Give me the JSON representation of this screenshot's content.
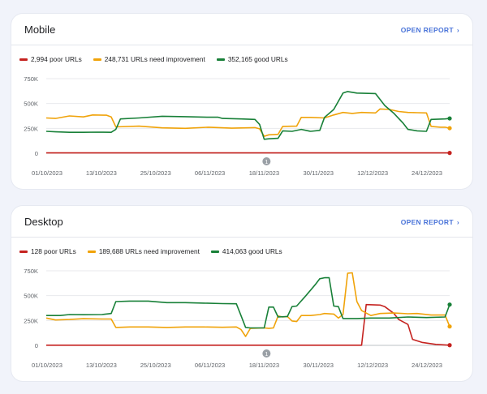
{
  "mobile": {
    "title": "Mobile",
    "open_report": "OPEN REPORT",
    "chart_data": {
      "type": "line",
      "x": [
        "01/10/2023",
        "13/10/2023",
        "25/10/2023",
        "06/11/2023",
        "18/11/2023",
        "30/11/2023",
        "12/12/2023",
        "24/12/2023"
      ],
      "y_ticks": [
        "750K",
        "500K",
        "250K",
        "0"
      ],
      "ylim": [
        0,
        750000
      ],
      "annotation": "1",
      "series": [
        {
          "name": "2,994 poor URLs",
          "color": "#c5221f",
          "values": [
            [
              0,
              3000
            ],
            [
              15,
              3000
            ],
            [
              30,
              3000
            ],
            [
              45,
              3000
            ],
            [
              60,
              3000
            ],
            [
              70,
              3000
            ],
            [
              80,
              3000
            ],
            [
              87,
              3000
            ]
          ]
        },
        {
          "name": "248,731 URLs need improvement",
          "color": "#f0a30a",
          "values": [
            [
              0,
              355000
            ],
            [
              2,
              350000
            ],
            [
              5,
              375000
            ],
            [
              8,
              365000
            ],
            [
              10,
              385000
            ],
            [
              13,
              382000
            ],
            [
              14,
              365000
            ],
            [
              15,
              265000
            ],
            [
              20,
              272000
            ],
            [
              25,
              255000
            ],
            [
              30,
              250000
            ],
            [
              35,
              262000
            ],
            [
              40,
              252000
            ],
            [
              45,
              258000
            ],
            [
              46,
              245000
            ],
            [
              47,
              170000
            ],
            [
              48,
              185000
            ],
            [
              50,
              190000
            ],
            [
              51,
              270000
            ],
            [
              54,
              272000
            ],
            [
              55,
              360000
            ],
            [
              57,
              360000
            ],
            [
              60,
              355000
            ],
            [
              62,
              385000
            ],
            [
              64,
              410000
            ],
            [
              66,
              400000
            ],
            [
              68,
              410000
            ],
            [
              71,
              405000
            ],
            [
              72,
              445000
            ],
            [
              74,
              440000
            ],
            [
              76,
              420000
            ],
            [
              78,
              410000
            ],
            [
              80,
              408000
            ],
            [
              82,
              405000
            ],
            [
              83,
              270000
            ],
            [
              85,
              262000
            ],
            [
              86,
              262000
            ],
            [
              87,
              252000
            ]
          ]
        },
        {
          "name": "352,165 good URLs",
          "color": "#188038",
          "values": [
            [
              0,
              220000
            ],
            [
              2,
              215000
            ],
            [
              5,
              210000
            ],
            [
              8,
              210000
            ],
            [
              11,
              212000
            ],
            [
              14,
              210000
            ],
            [
              15,
              240000
            ],
            [
              16,
              345000
            ],
            [
              20,
              355000
            ],
            [
              25,
              372000
            ],
            [
              30,
              368000
            ],
            [
              35,
              362000
            ],
            [
              37,
              363000
            ],
            [
              38,
              350000
            ],
            [
              42,
              345000
            ],
            [
              45,
              340000
            ],
            [
              46,
              290000
            ],
            [
              47,
              140000
            ],
            [
              48,
              145000
            ],
            [
              50,
              150000
            ],
            [
              51,
              225000
            ],
            [
              53,
              220000
            ],
            [
              55,
              240000
            ],
            [
              57,
              220000
            ],
            [
              59,
              230000
            ],
            [
              60,
              360000
            ],
            [
              62,
              440000
            ],
            [
              64,
              605000
            ],
            [
              65,
              620000
            ],
            [
              67,
              605000
            ],
            [
              71,
              600000
            ],
            [
              73,
              480000
            ],
            [
              75,
              400000
            ],
            [
              77,
              300000
            ],
            [
              78,
              240000
            ],
            [
              80,
              225000
            ],
            [
              82,
              220000
            ],
            [
              83,
              340000
            ],
            [
              86,
              345000
            ],
            [
              87,
              350000
            ]
          ]
        }
      ]
    }
  },
  "desktop": {
    "title": "Desktop",
    "open_report": "OPEN REPORT",
    "chart_data": {
      "type": "line",
      "x": [
        "01/10/2023",
        "13/10/2023",
        "25/10/2023",
        "06/11/2023",
        "18/11/2023",
        "30/11/2023",
        "12/12/2023",
        "24/12/2023"
      ],
      "y_ticks": [
        "750K",
        "500K",
        "250K",
        "0"
      ],
      "ylim": [
        0,
        750000
      ],
      "annotation": "1",
      "series": [
        {
          "name": "128 poor URLs",
          "color": "#c5221f",
          "values": [
            [
              0,
              2000
            ],
            [
              20,
              2000
            ],
            [
              40,
              2000
            ],
            [
              60,
              2000
            ],
            [
              68,
              2000
            ],
            [
              69,
              410000
            ],
            [
              72,
              405000
            ],
            [
              73,
              390000
            ],
            [
              75,
              320000
            ],
            [
              76,
              260000
            ],
            [
              78,
              210000
            ],
            [
              79,
              60000
            ],
            [
              81,
              30000
            ],
            [
              84,
              10000
            ],
            [
              87,
              2000
            ]
          ]
        },
        {
          "name": "189,688 URLs need improvement",
          "color": "#f0a30a",
          "values": [
            [
              0,
              275000
            ],
            [
              2,
              255000
            ],
            [
              5,
              260000
            ],
            [
              8,
              268000
            ],
            [
              12,
              265000
            ],
            [
              14,
              265000
            ],
            [
              15,
              180000
            ],
            [
              18,
              185000
            ],
            [
              22,
              185000
            ],
            [
              26,
              180000
            ],
            [
              30,
              185000
            ],
            [
              34,
              185000
            ],
            [
              38,
              182000
            ],
            [
              41,
              185000
            ],
            [
              42,
              160000
            ],
            [
              43,
              90000
            ],
            [
              44,
              170000
            ],
            [
              47,
              175000
            ],
            [
              48,
              170000
            ],
            [
              49,
              175000
            ],
            [
              50,
              295000
            ],
            [
              51,
              285000
            ],
            [
              52,
              290000
            ],
            [
              53,
              245000
            ],
            [
              54,
              240000
            ],
            [
              55,
              300000
            ],
            [
              57,
              300000
            ],
            [
              59,
              310000
            ],
            [
              60,
              320000
            ],
            [
              62,
              315000
            ],
            [
              63,
              275000
            ],
            [
              64,
              310000
            ],
            [
              65,
              725000
            ],
            [
              66,
              730000
            ],
            [
              67,
              440000
            ],
            [
              68,
              350000
            ],
            [
              70,
              300000
            ],
            [
              72,
              320000
            ],
            [
              75,
              325000
            ],
            [
              78,
              318000
            ],
            [
              80,
              320000
            ],
            [
              83,
              305000
            ],
            [
              86,
              305000
            ],
            [
              87,
              190000
            ]
          ]
        },
        {
          "name": "414,063 good URLs",
          "color": "#188038",
          "values": [
            [
              0,
              300000
            ],
            [
              3,
              300000
            ],
            [
              5,
              310000
            ],
            [
              8,
              308000
            ],
            [
              12,
              310000
            ],
            [
              14,
              320000
            ],
            [
              15,
              440000
            ],
            [
              18,
              445000
            ],
            [
              22,
              445000
            ],
            [
              26,
              430000
            ],
            [
              30,
              430000
            ],
            [
              34,
              425000
            ],
            [
              38,
              420000
            ],
            [
              41,
              418000
            ],
            [
              42,
              300000
            ],
            [
              43,
              180000
            ],
            [
              44,
              175000
            ],
            [
              47,
              175000
            ],
            [
              48,
              385000
            ],
            [
              49,
              385000
            ],
            [
              50,
              285000
            ],
            [
              52,
              290000
            ],
            [
              53,
              390000
            ],
            [
              54,
              395000
            ],
            [
              56,
              500000
            ],
            [
              58,
              610000
            ],
            [
              59,
              670000
            ],
            [
              60,
              680000
            ],
            [
              61,
              680000
            ],
            [
              62,
              395000
            ],
            [
              63,
              390000
            ],
            [
              64,
              270000
            ],
            [
              67,
              270000
            ],
            [
              70,
              275000
            ],
            [
              74,
              275000
            ],
            [
              78,
              285000
            ],
            [
              82,
              280000
            ],
            [
              86,
              285000
            ],
            [
              87,
              410000
            ]
          ]
        }
      ]
    }
  }
}
